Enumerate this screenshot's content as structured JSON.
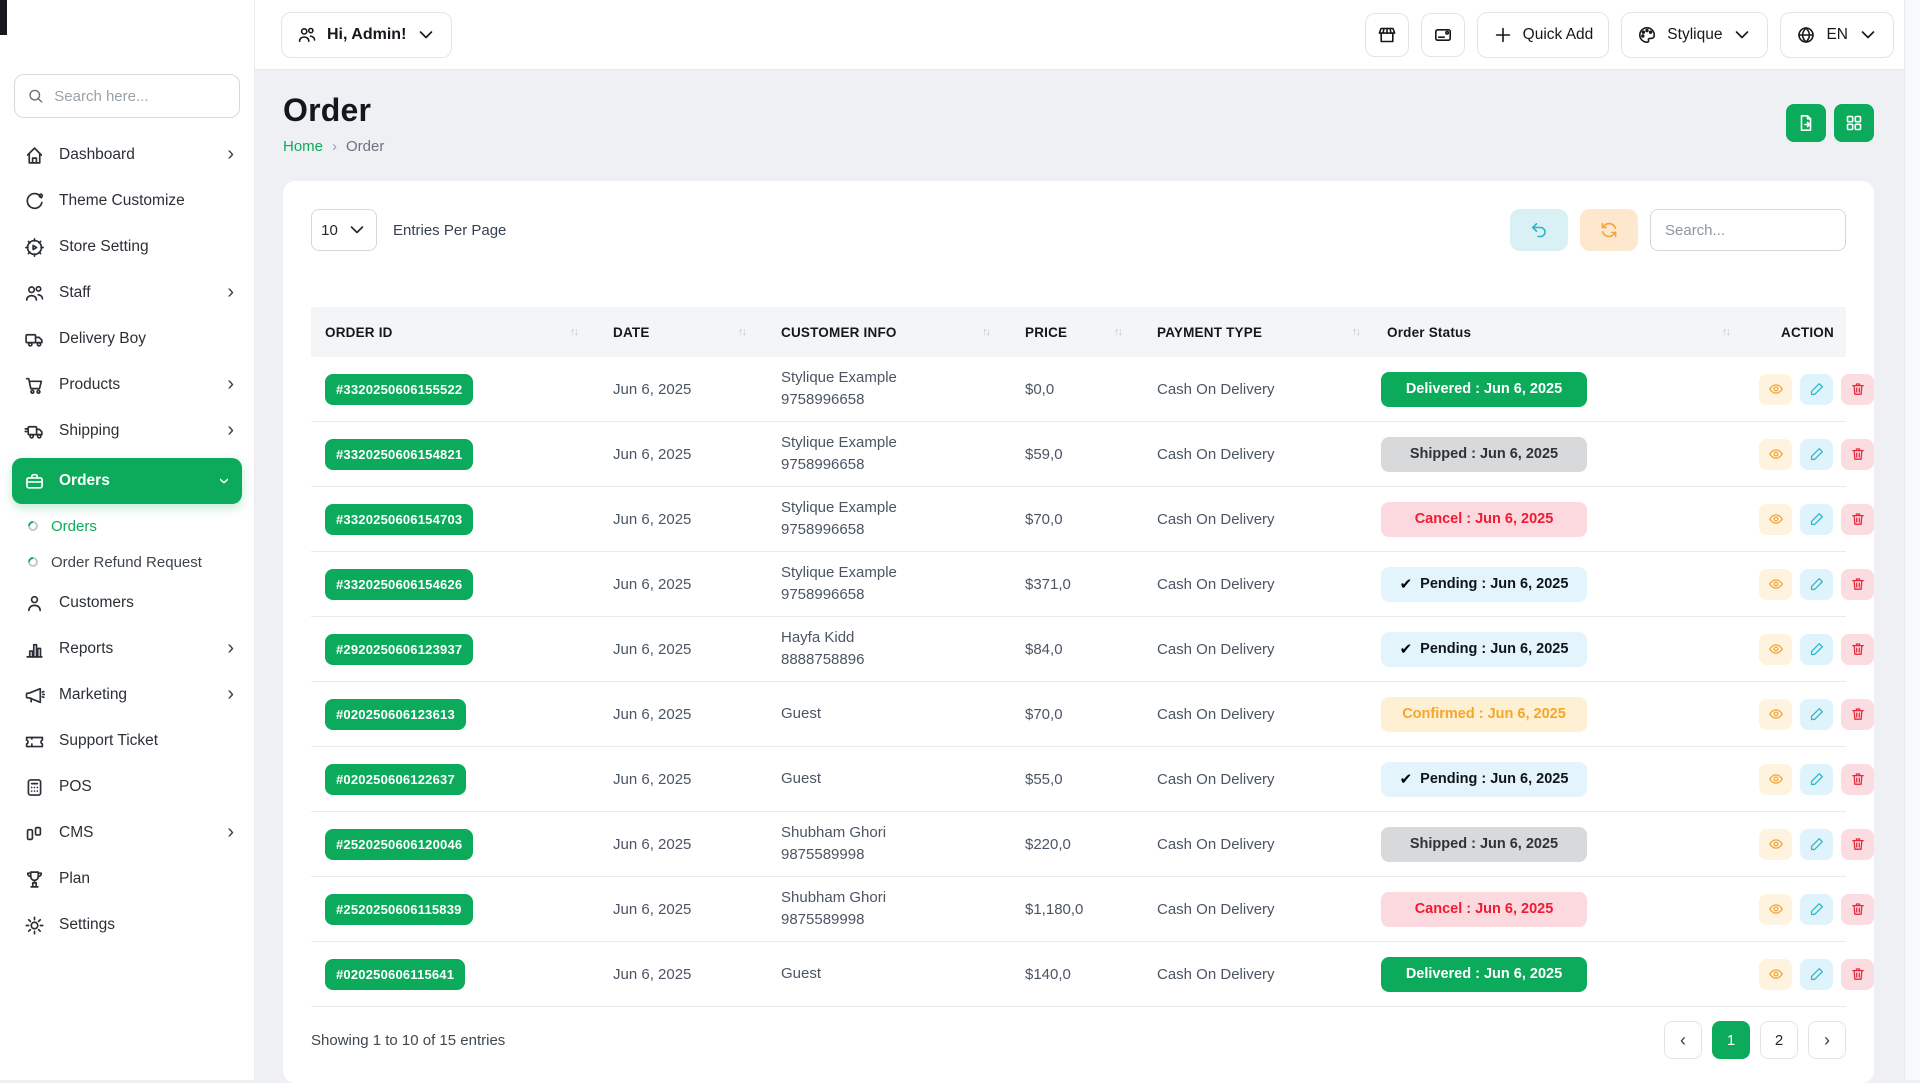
{
  "colors": {
    "primary_green": "#0cab5c",
    "content_background": "#eef0f3",
    "cancel_red": "#ef1b32",
    "confirm_orange": "#f7a62b",
    "pending_blue_bg": "#e3f4fd",
    "shipped_gray_bg": "#d8d9db",
    "undo_teal": "#2ab3c4",
    "refresh_orange": "#f6a33b"
  },
  "sidebar": {
    "search_placeholder": "Search here...",
    "search_icon": "search-icon",
    "chevron_icon": "›",
    "items": [
      {
        "label": "Dashboard",
        "icon": "home-icon",
        "chevron": true
      },
      {
        "label": "Theme Customize",
        "icon": "theme-icon",
        "chevron": false
      },
      {
        "label": "Store Setting",
        "icon": "store-setting-icon",
        "chevron": false
      },
      {
        "label": "Staff",
        "icon": "staff-icon",
        "chevron": true
      },
      {
        "label": "Delivery Boy",
        "icon": "delivery-truck-icon",
        "chevron": false
      },
      {
        "label": "Products",
        "icon": "cart-icon",
        "chevron": true
      },
      {
        "label": "Shipping",
        "icon": "shipping-truck-icon",
        "chevron": true
      },
      {
        "label": "Orders",
        "icon": "briefcase-icon",
        "chevron": true,
        "active": true,
        "expanded": true,
        "submenu": [
          {
            "label": "Orders",
            "active": true
          },
          {
            "label": "Order Refund Request",
            "active": false
          }
        ]
      },
      {
        "label": "Customers",
        "icon": "customer-icon",
        "chevron": false
      },
      {
        "label": "Reports",
        "icon": "bar-chart-icon",
        "chevron": true
      },
      {
        "label": "Marketing",
        "icon": "megaphone-icon",
        "chevron": true
      },
      {
        "label": "Support Ticket",
        "icon": "ticket-icon",
        "chevron": false
      },
      {
        "label": "POS",
        "icon": "pos-icon",
        "chevron": false
      },
      {
        "label": "CMS",
        "icon": "cms-icon",
        "chevron": true
      },
      {
        "label": "Plan",
        "icon": "trophy-icon",
        "chevron": false
      },
      {
        "label": "Settings",
        "icon": "gear-icon",
        "chevron": false
      }
    ]
  },
  "header": {
    "greeting": {
      "icon": "users-icon",
      "label": "Hi, Admin!",
      "chevron_icon": "chevron-down-icon"
    },
    "store_button_icon": "store-icon",
    "card_button_icon": "card-icon",
    "quick_add": {
      "icon": "plus-icon",
      "label": "Quick Add"
    },
    "brand": {
      "icon": "palette-icon",
      "label": "Stylique",
      "chevron_icon": "chevron-down-icon"
    },
    "language": {
      "icon": "globe-icon",
      "label": "EN",
      "chevron_icon": "chevron-down-icon"
    }
  },
  "page": {
    "title": "Order",
    "breadcrumb": {
      "home": "Home",
      "separator": "›",
      "current": "Order"
    },
    "actions": [
      {
        "icon": "file-export-icon"
      },
      {
        "icon": "grid-icon"
      }
    ]
  },
  "toolbar": {
    "entries_value": "10",
    "entries_chevron_icon": "chevron-down-icon",
    "entries_label": "Entries Per Page",
    "undo_icon": "undo-icon",
    "refresh_icon": "refresh-icon",
    "search_placeholder": "Search..."
  },
  "table": {
    "sort_icon": "↑↓",
    "check_icon": "✔",
    "columns": [
      {
        "label": "ORDER ID",
        "sortable": true
      },
      {
        "label": "DATE",
        "sortable": true
      },
      {
        "label": "CUSTOMER INFO",
        "sortable": true
      },
      {
        "label": "PRICE",
        "sortable": true
      },
      {
        "label": "PAYMENT TYPE",
        "sortable": true
      },
      {
        "label": "Order Status",
        "sortable": true
      },
      {
        "label": "ACTION",
        "sortable": false
      }
    ],
    "row_actions": [
      {
        "icon": "eye-icon",
        "name": "view-order-button"
      },
      {
        "icon": "pencil-icon",
        "name": "edit-order-button"
      },
      {
        "icon": "trash-icon",
        "name": "delete-order-button"
      }
    ],
    "rows": [
      {
        "order_id": "#3320250606155522",
        "date": "Jun 6, 2025",
        "customer_name": "Stylique Example",
        "customer_phone": "9758996658",
        "price": "$0,0",
        "payment": "Cash On Delivery",
        "status": {
          "type": "delivered",
          "label": "Delivered : Jun 6, 2025",
          "check": false
        }
      },
      {
        "order_id": "#3320250606154821",
        "date": "Jun 6, 2025",
        "customer_name": "Stylique Example",
        "customer_phone": "9758996658",
        "price": "$59,0",
        "payment": "Cash On Delivery",
        "status": {
          "type": "shipped",
          "label": "Shipped : Jun 6, 2025",
          "check": false
        }
      },
      {
        "order_id": "#3320250606154703",
        "date": "Jun 6, 2025",
        "customer_name": "Stylique Example",
        "customer_phone": "9758996658",
        "price": "$70,0",
        "payment": "Cash On Delivery",
        "status": {
          "type": "cancel",
          "label": "Cancel : Jun 6, 2025",
          "check": false
        }
      },
      {
        "order_id": "#3320250606154626",
        "date": "Jun 6, 2025",
        "customer_name": "Stylique Example",
        "customer_phone": "9758996658",
        "price": "$371,0",
        "payment": "Cash On Delivery",
        "status": {
          "type": "pending",
          "label": "Pending : Jun 6, 2025",
          "check": true
        }
      },
      {
        "order_id": "#2920250606123937",
        "date": "Jun 6, 2025",
        "customer_name": "Hayfa Kidd",
        "customer_phone": "8888758896",
        "price": "$84,0",
        "payment": "Cash On Delivery",
        "status": {
          "type": "pending",
          "label": "Pending : Jun 6, 2025",
          "check": true
        }
      },
      {
        "order_id": "#020250606123613",
        "date": "Jun 6, 2025",
        "customer_name": "Guest",
        "customer_phone": "",
        "price": "$70,0",
        "payment": "Cash On Delivery",
        "status": {
          "type": "confirmed",
          "label": "Confirmed : Jun 6, 2025",
          "check": false
        }
      },
      {
        "order_id": "#020250606122637",
        "date": "Jun 6, 2025",
        "customer_name": "Guest",
        "customer_phone": "",
        "price": "$55,0",
        "payment": "Cash On Delivery",
        "status": {
          "type": "pending",
          "label": "Pending : Jun 6, 2025",
          "check": true
        }
      },
      {
        "order_id": "#2520250606120046",
        "date": "Jun 6, 2025",
        "customer_name": "Shubham Ghori",
        "customer_phone": "9875589998",
        "price": "$220,0",
        "payment": "Cash On Delivery",
        "status": {
          "type": "shipped",
          "label": "Shipped : Jun 6, 2025",
          "check": false
        }
      },
      {
        "order_id": "#2520250606115839",
        "date": "Jun 6, 2025",
        "customer_name": "Shubham Ghori",
        "customer_phone": "9875589998",
        "price": "$1,180,0",
        "payment": "Cash On Delivery",
        "status": {
          "type": "cancel",
          "label": "Cancel : Jun 6, 2025",
          "check": false
        }
      },
      {
        "order_id": "#020250606115641",
        "date": "Jun 6, 2025",
        "customer_name": "Guest",
        "customer_phone": "",
        "price": "$140,0",
        "payment": "Cash On Delivery",
        "status": {
          "type": "delivered",
          "label": "Delivered : Jun 6, 2025",
          "check": false
        }
      }
    ]
  },
  "footer": {
    "showing_text": "Showing 1 to 10 of 15 entries",
    "prev_icon": "‹",
    "next_icon": "›",
    "pages": [
      "1",
      "2"
    ],
    "active_page": "1"
  }
}
